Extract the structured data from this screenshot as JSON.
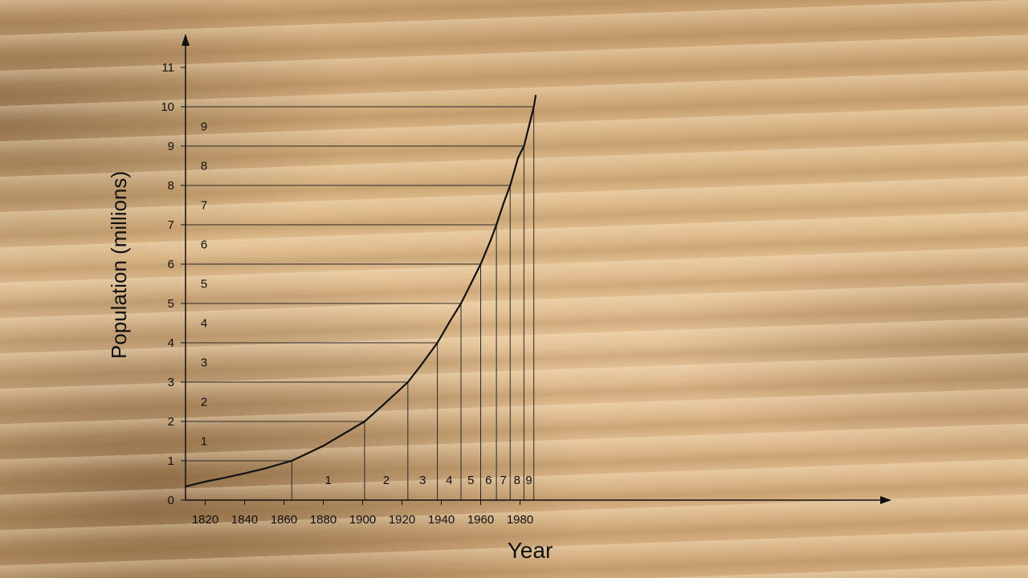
{
  "chart_data": {
    "type": "line",
    "title": "",
    "xlabel": "Year",
    "ylabel": "Population (millions)",
    "xlim": [
      1810,
      1990
    ],
    "ylim": [
      0,
      11.5
    ],
    "x_ticks": [
      1820,
      1840,
      1860,
      1880,
      1900,
      1920,
      1940,
      1960,
      1980
    ],
    "y_ticks": [
      0,
      1,
      2,
      3,
      4,
      5,
      6,
      7,
      8,
      9,
      10,
      11
    ],
    "grid": false,
    "series": [
      {
        "x": [
          1810,
          1820,
          1830,
          1840,
          1850,
          1864,
          1880,
          1901,
          1910,
          1923,
          1930,
          1938,
          1945,
          1950,
          1955,
          1960,
          1965,
          1968,
          1972,
          1975,
          1979,
          1982,
          1985,
          1987,
          1988
        ],
        "y": [
          0.35,
          0.47,
          0.57,
          0.68,
          0.8,
          1.0,
          1.38,
          2.0,
          2.4,
          3.0,
          3.45,
          4.0,
          4.6,
          5.0,
          5.5,
          6.0,
          6.6,
          7.0,
          7.6,
          8.0,
          8.7,
          9.0,
          9.6,
          10.0,
          10.3
        ]
      }
    ],
    "crossings": [
      {
        "value": 1,
        "year": 1864
      },
      {
        "value": 2,
        "year": 1901
      },
      {
        "value": 3,
        "year": 1923
      },
      {
        "value": 4,
        "year": 1938
      },
      {
        "value": 5,
        "year": 1950
      },
      {
        "value": 6,
        "year": 1960
      },
      {
        "value": 7,
        "year": 1968
      },
      {
        "value": 8,
        "year": 1975
      },
      {
        "value": 9,
        "year": 1982
      },
      {
        "value": 10,
        "year": 1987
      }
    ],
    "band_labels": [
      "1",
      "2",
      "3",
      "4",
      "5",
      "6",
      "7",
      "8",
      "9"
    ],
    "colors": {
      "line": "#111111",
      "guide": "#2a2a2a"
    }
  }
}
